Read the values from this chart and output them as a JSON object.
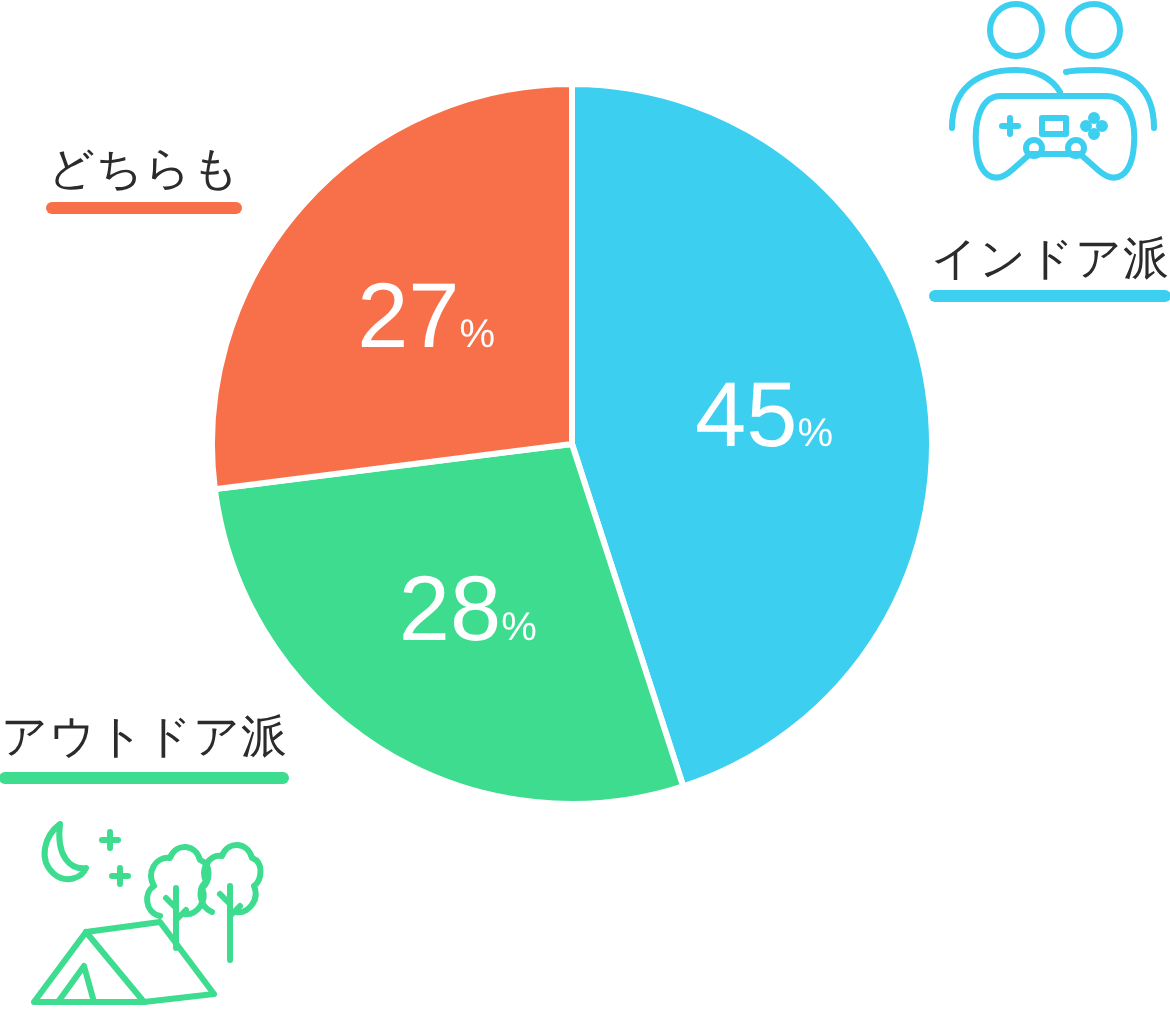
{
  "chart_data": {
    "type": "pie",
    "categories": [
      "インドア派",
      "アウトドア派",
      "どちらも"
    ],
    "values": [
      45,
      28,
      27
    ],
    "colors": [
      "#3dcfef",
      "#3ddc8f",
      "#f8704a"
    ],
    "value_labels": [
      "45%",
      "28%",
      "27%"
    ]
  }
}
